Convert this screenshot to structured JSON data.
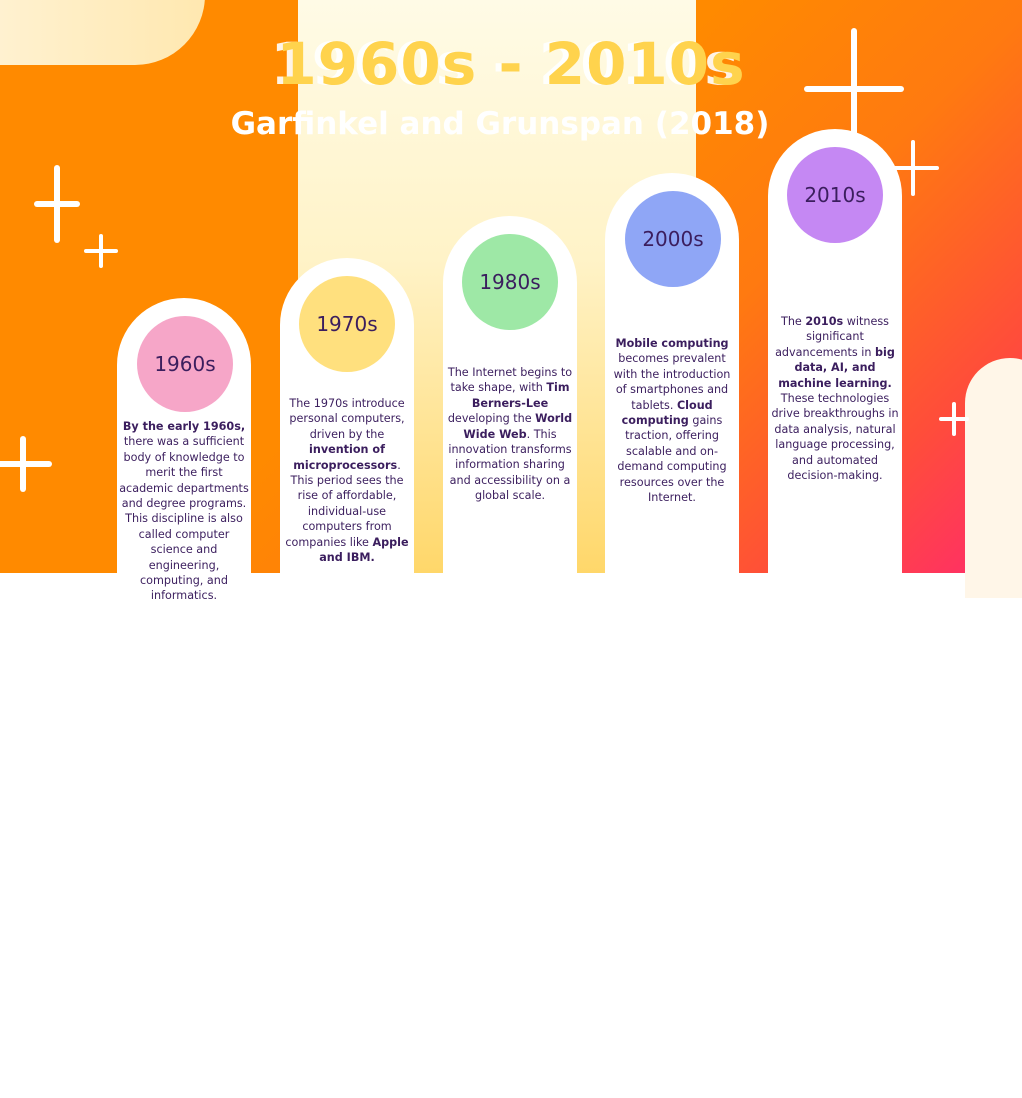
{
  "header": {
    "title": "1960s - 2010s",
    "subtitle": "Garfinkel and Grunspan (2018)"
  },
  "eras": [
    {
      "label": "1960s",
      "color": "#f6a6c8",
      "parts": [
        {
          "b": true,
          "t": "By the early 1960s,"
        },
        {
          "b": false,
          "t": " there was a sufficient body of knowledge to merit the first academic departments and degree programs. This discipline is also called computer science and engineering, computing, and informatics."
        }
      ]
    },
    {
      "label": "1970s",
      "color": "#ffe07e",
      "parts": [
        {
          "b": false,
          "t": "The 1970s introduce personal computers, driven by the "
        },
        {
          "b": true,
          "t": "invention of microprocessors"
        },
        {
          "b": false,
          "t": ". This period sees the rise of affordable, individual-use computers from companies like "
        },
        {
          "b": true,
          "t": "Apple and IBM."
        }
      ]
    },
    {
      "label": "1980s",
      "color": "#9ee8a6",
      "parts": [
        {
          "b": false,
          "t": "The Internet begins to take shape, with "
        },
        {
          "b": true,
          "t": "Tim Berners-Lee"
        },
        {
          "b": false,
          "t": " developing the "
        },
        {
          "b": true,
          "t": "World Wide Web"
        },
        {
          "b": false,
          "t": ". This innovation transforms information sharing and accessibility on a global scale."
        }
      ]
    },
    {
      "label": "2000s",
      "color": "#8fa6f6",
      "parts": [
        {
          "b": true,
          "t": "Mobile computing"
        },
        {
          "b": false,
          "t": " becomes prevalent with the introduction of smartphones and tablets. "
        },
        {
          "b": true,
          "t": "Cloud computing"
        },
        {
          "b": false,
          "t": " gains traction, offering scalable and on-demand computing resources over the Internet."
        }
      ]
    },
    {
      "label": "2010s",
      "color": "#c588f3",
      "parts": [
        {
          "b": false,
          "t": "The "
        },
        {
          "b": true,
          "t": "2010s"
        },
        {
          "b": false,
          "t": " witness significant advancements in "
        },
        {
          "b": true,
          "t": "big data, AI, and machine learning."
        },
        {
          "b": false,
          "t": " These technologies drive breakthroughs in data analysis, natural language processing, and automated decision-making."
        }
      ]
    }
  ]
}
